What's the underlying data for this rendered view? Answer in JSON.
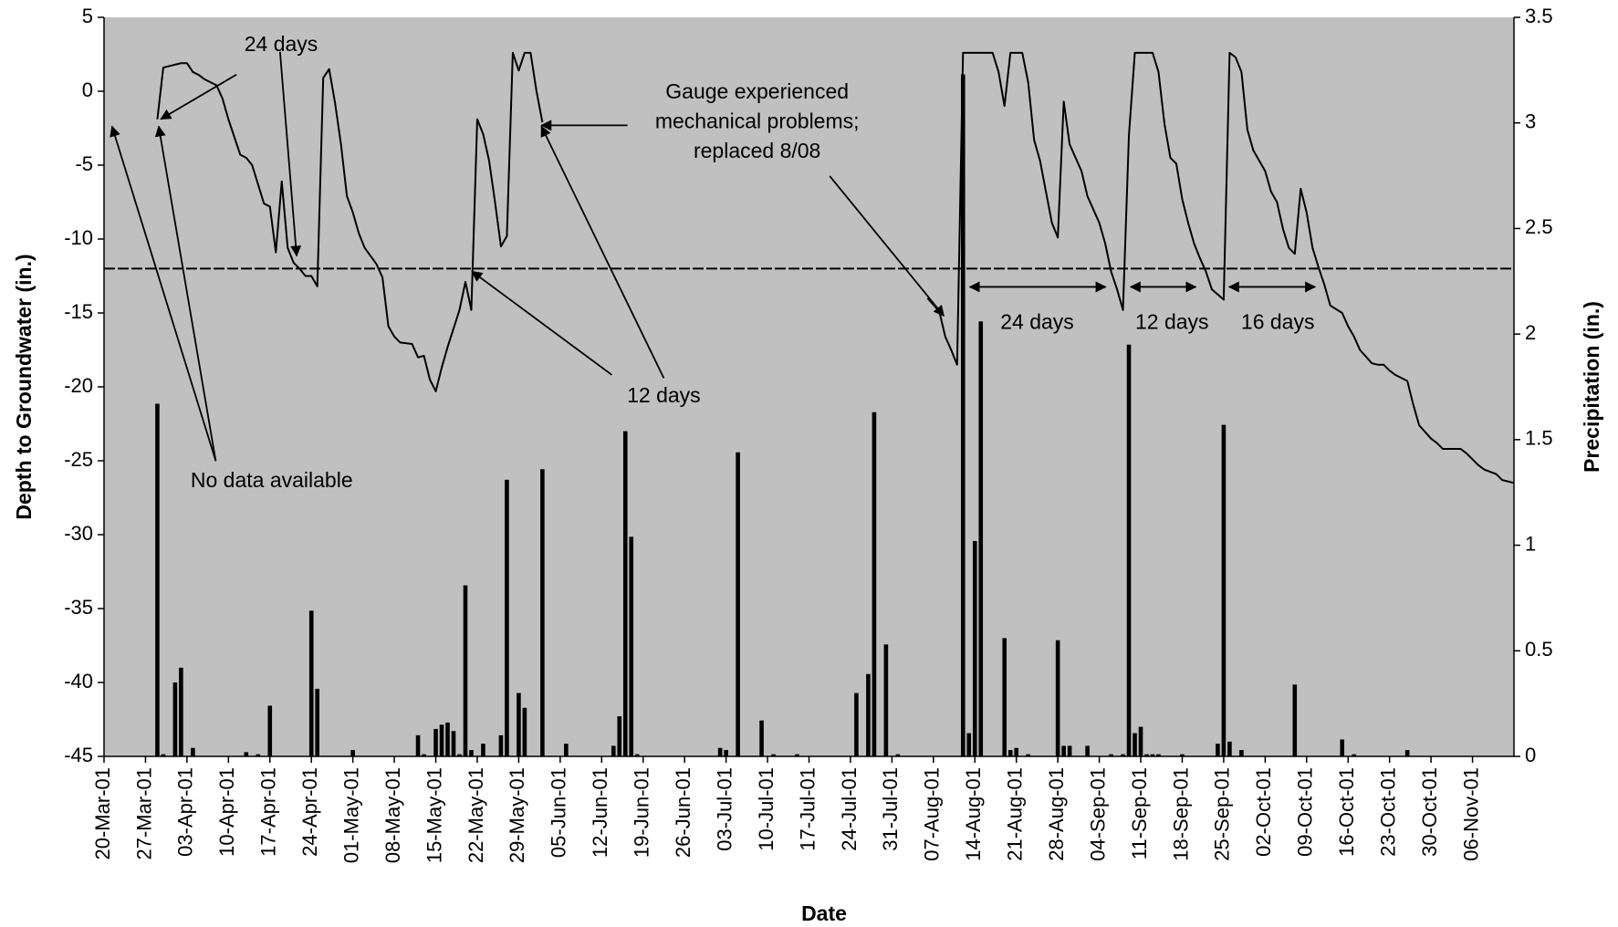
{
  "chart_data": {
    "type": "combo",
    "xlabel": "Date",
    "ylabel": "Depth to Groundwater (in.)",
    "y2label": "Precipitation (in.)",
    "xlim": [
      "20-Mar-01",
      "13-Nov-01"
    ],
    "xticks": [
      "20-Mar-01",
      "27-Mar-01",
      "03-Apr-01",
      "10-Apr-01",
      "17-Apr-01",
      "24-Apr-01",
      "01-May-01",
      "08-May-01",
      "15-May-01",
      "22-May-01",
      "29-May-01",
      "05-Jun-01",
      "12-Jun-01",
      "19-Jun-01",
      "26-Jun-01",
      "03-Jul-01",
      "10-Jul-01",
      "17-Jul-01",
      "24-Jul-01",
      "31-Jul-01",
      "07-Aug-01",
      "14-Aug-01",
      "21-Aug-01",
      "28-Aug-01",
      "04-Sep-01",
      "11-Sep-01",
      "18-Sep-01",
      "25-Sep-01",
      "02-Oct-01",
      "09-Oct-01",
      "16-Oct-01",
      "23-Oct-01",
      "30-Oct-01",
      "06-Nov-01"
    ],
    "ylim": [
      -45,
      5
    ],
    "yticks": [
      -45,
      -40,
      -35,
      -30,
      -25,
      -20,
      -15,
      -10,
      -5,
      0,
      5
    ],
    "y2lim": [
      0,
      3.5
    ],
    "y2ticks": [
      0,
      0.5,
      1,
      1.5,
      2,
      2.5,
      3,
      3.5
    ],
    "background": "#c0c0c0",
    "reference_line": -12,
    "series": [
      {
        "type": "line",
        "color": "#000000",
        "x": [
          "29-Mar-01",
          "30-Mar-01",
          "31-Mar-01",
          "02-Apr-01",
          "03-Apr-01",
          "04-Apr-01",
          "05-Apr-01",
          "06-Apr-01",
          "08-Apr-01",
          "09-Apr-01",
          "10-Apr-01",
          "12-Apr-01",
          "13-Apr-01",
          "14-Apr-01",
          "15-Apr-01",
          "16-Apr-01",
          "17-Apr-01",
          "18-Apr-01",
          "19-Apr-01",
          "20-Apr-01",
          "21-Apr-01",
          "22-Apr-01",
          "23-Apr-01",
          "24-Apr-01",
          "25-Apr-01",
          "26-Apr-01",
          "27-Apr-01",
          "28-Apr-01",
          "29-Apr-01",
          "30-Apr-01",
          "01-May-01",
          "02-May-01",
          "03-May-01",
          "05-May-01",
          "06-May-01",
          "07-May-01",
          "08-May-01",
          "09-May-01",
          "11-May-01",
          "12-May-01",
          "13-May-01",
          "14-May-01",
          "15-May-01",
          "16-May-01",
          "17-May-01",
          "19-May-01",
          "20-May-01",
          "21-May-01",
          "22-May-01",
          "23-May-01",
          "24-May-01",
          "25-May-01",
          "26-May-01",
          "27-May-01",
          "28-May-01",
          "29-May-01",
          "30-May-01",
          "31-May-01",
          "01-Jun-01",
          "02-Jun-01",
          "04-Jul-01",
          "06-Aug-01",
          "08-Aug-01",
          "09-Aug-01",
          "10-Aug-01",
          "11-Aug-01",
          "12-Aug-01",
          "13-Aug-01",
          "17-Aug-01",
          "18-Aug-01",
          "19-Aug-01",
          "20-Aug-01",
          "22-Aug-01",
          "23-Aug-01",
          "24-Aug-01",
          "25-Aug-01",
          "26-Aug-01",
          "27-Aug-01",
          "28-Aug-01",
          "29-Aug-01",
          "30-Aug-01",
          "01-Sep-01",
          "02-Sep-01",
          "04-Sep-01",
          "05-Sep-01",
          "06-Sep-01",
          "07-Sep-01",
          "08-Sep-01",
          "09-Sep-01",
          "10-Sep-01",
          "13-Sep-01",
          "14-Sep-01",
          "15-Sep-01",
          "16-Sep-01",
          "17-Sep-01",
          "18-Sep-01",
          "19-Sep-01",
          "20-Sep-01",
          "21-Sep-01",
          "22-Sep-01",
          "23-Sep-01",
          "25-Sep-01",
          "26-Sep-01",
          "27-Sep-01",
          "28-Sep-01",
          "29-Sep-01",
          "30-Sep-01",
          "02-Oct-01",
          "03-Oct-01",
          "04-Oct-01",
          "05-Oct-01",
          "06-Oct-01",
          "07-Oct-01",
          "08-Oct-01",
          "09-Oct-01",
          "10-Oct-01",
          "11-Oct-01",
          "12-Oct-01",
          "13-Oct-01",
          "15-Oct-01",
          "16-Oct-01",
          "17-Oct-01",
          "18-Oct-01",
          "20-Oct-01",
          "21-Oct-01",
          "22-Oct-01",
          "23-Oct-01",
          "24-Oct-01",
          "26-Oct-01",
          "27-Oct-01",
          "28-Oct-01",
          "30-Oct-01",
          "31-Oct-01",
          "01-Nov-01",
          "03-Nov-01",
          "04-Nov-01",
          "05-Nov-01",
          "07-Nov-01",
          "08-Nov-01",
          "10-Nov-01",
          "11-Nov-01",
          "13-Nov-01"
        ],
        "values": [
          -1.9,
          1.6,
          1.7,
          1.9,
          1.9,
          1.3,
          1.1,
          0.8,
          0.4,
          -0.5,
          -1.9,
          -4.3,
          -4.5,
          -5.0,
          -6.3,
          -7.6,
          -7.8,
          -10.9,
          -6.1,
          -10.6,
          -11.6,
          -12.0,
          -12.5,
          -12.5,
          -13.2,
          0.9,
          1.5,
          -0.8,
          -3.6,
          -7.1,
          -8.2,
          -9.6,
          -10.6,
          -11.7,
          -12.6,
          -15.9,
          -16.6,
          -17.0,
          -17.1,
          -18.0,
          -17.9,
          -19.5,
          -20.3,
          -18.7,
          -17.3,
          -14.8,
          -12.9,
          -14.8,
          -1.9,
          -2.9,
          -4.7,
          -7.5,
          -10.5,
          -9.8,
          2.6,
          1.4,
          2.6,
          2.6,
          0.0,
          -2.1,
          null,
          -14.0,
          -14.9,
          -16.6,
          -17.5,
          -18.5,
          2.6,
          2.6,
          2.6,
          1.3,
          -1.0,
          2.6,
          2.6,
          0.6,
          -3.3,
          -4.7,
          -6.8,
          -8.9,
          -9.9,
          -0.7,
          -3.6,
          -5.4,
          -7.1,
          -8.9,
          -10.3,
          -12.2,
          -13.4,
          -14.8,
          -3.0,
          2.6,
          2.6,
          1.3,
          -2.2,
          -4.5,
          -4.9,
          -7.3,
          -8.9,
          -10.3,
          -11.3,
          -12.2,
          -13.4,
          -14.1,
          2.6,
          2.3,
          1.3,
          -2.6,
          -4.0,
          -5.4,
          -6.8,
          -7.5,
          -9.3,
          -10.6,
          -11.0,
          -6.6,
          -8.2,
          -10.6,
          -11.9,
          -13.1,
          -14.5,
          -15.0,
          -15.9,
          -16.6,
          -17.5,
          -18.4,
          -18.5,
          -18.5,
          -18.9,
          -19.2,
          -19.6,
          -21.2,
          -22.6,
          -23.5,
          -23.8,
          -24.2,
          -24.2,
          -24.2,
          -24.5,
          -25.3,
          -25.6,
          -25.9,
          -26.3,
          -26.5
        ]
      },
      {
        "type": "bar",
        "axis": "y2",
        "color": "#000000",
        "x": [
          "29-Mar-01",
          "30-Mar-01",
          "01-Apr-01",
          "02-Apr-01",
          "04-Apr-01",
          "13-Apr-01",
          "15-Apr-01",
          "17-Apr-01",
          "24-Apr-01",
          "25-Apr-01",
          "01-May-01",
          "12-May-01",
          "13-May-01",
          "15-May-01",
          "16-May-01",
          "17-May-01",
          "18-May-01",
          "19-May-01",
          "20-May-01",
          "21-May-01",
          "23-May-01",
          "26-May-01",
          "27-May-01",
          "29-May-01",
          "30-May-01",
          "02-Jun-01",
          "06-Jun-01",
          "14-Jun-01",
          "15-Jun-01",
          "16-Jun-01",
          "17-Jun-01",
          "18-Jun-01",
          "02-Jul-01",
          "03-Jul-01",
          "05-Jul-01",
          "09-Jul-01",
          "11-Jul-01",
          "15-Jul-01",
          "25-Jul-01",
          "27-Jul-01",
          "28-Jul-01",
          "30-Jul-01",
          "01-Aug-01",
          "12-Aug-01",
          "13-Aug-01",
          "14-Aug-01",
          "15-Aug-01",
          "19-Aug-01",
          "20-Aug-01",
          "21-Aug-01",
          "23-Aug-01",
          "28-Aug-01",
          "29-Aug-01",
          "30-Aug-01",
          "02-Sep-01",
          "06-Sep-01",
          "08-Sep-01",
          "09-Sep-01",
          "10-Sep-01",
          "11-Sep-01",
          "12-Sep-01",
          "13-Sep-01",
          "14-Sep-01",
          "18-Sep-01",
          "24-Sep-01",
          "25-Sep-01",
          "26-Sep-01",
          "28-Sep-01",
          "07-Oct-01",
          "15-Oct-01",
          "17-Oct-01",
          "26-Oct-01"
        ],
        "values": [
          1.67,
          0.01,
          0.35,
          0.42,
          0.04,
          0.02,
          0.01,
          0.24,
          0.69,
          0.32,
          0.03,
          0.1,
          0.01,
          0.13,
          0.15,
          0.16,
          0.12,
          0.01,
          0.81,
          0.03,
          0.06,
          0.1,
          1.31,
          0.3,
          0.23,
          1.36,
          0.06,
          0.05,
          0.19,
          1.54,
          1.04,
          0.01,
          0.04,
          0.03,
          1.44,
          0.17,
          0.01,
          0.01,
          0.3,
          0.39,
          1.63,
          0.53,
          0.01,
          3.23,
          0.11,
          1.02,
          2.06,
          0.56,
          0.03,
          0.04,
          0.01,
          0.55,
          0.05,
          0.05,
          0.05,
          0.01,
          0.01,
          1.95,
          0.11,
          0.14,
          0.01,
          0.01,
          0.01,
          0.01,
          0.06,
          1.57,
          0.07,
          0.03,
          0.34,
          0.08,
          0.01,
          0.03
        ]
      }
    ],
    "annotations": [
      {
        "text": "24 days"
      },
      {
        "text": "No data available"
      },
      {
        "lines": [
          "Gauge experienced",
          "mechanical problems;",
          "replaced 8/08"
        ]
      },
      {
        "text": "12 days"
      },
      {
        "text": "24 days"
      },
      {
        "text": "12 days"
      },
      {
        "text": "16 days"
      }
    ]
  }
}
